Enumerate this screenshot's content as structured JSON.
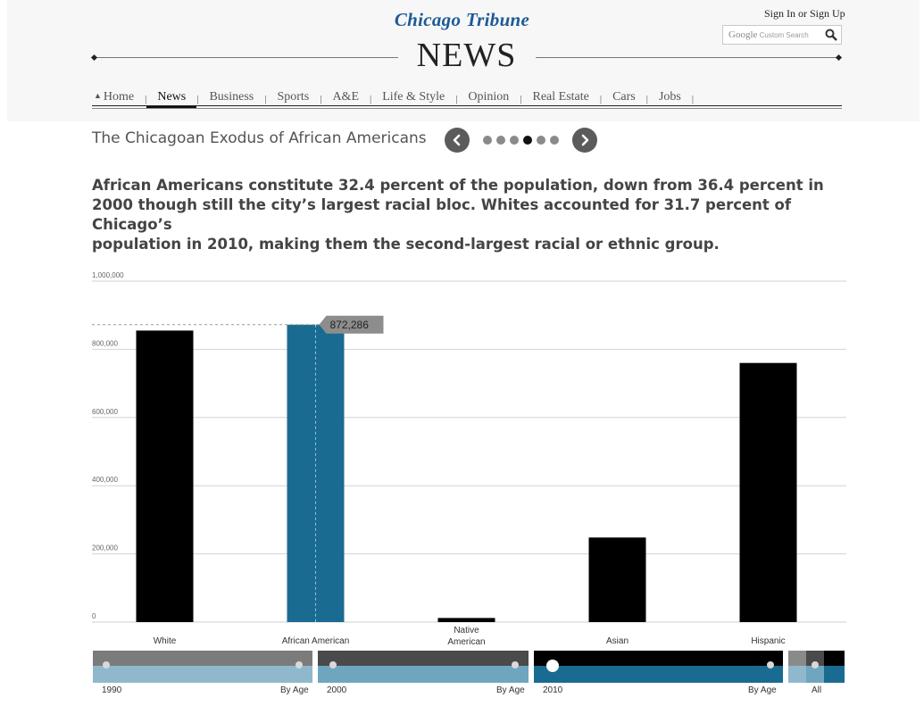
{
  "header": {
    "brand": "Chicago Tribune",
    "section": "NEWS",
    "signin": "Sign In or Sign Up",
    "search_brand": "Google",
    "search_placeholder": "Custom Search"
  },
  "nav": [
    "Home",
    "News",
    "Business",
    "Sports",
    "A&E",
    "Life & Style",
    "Opinion",
    "Real Estate",
    "Cars",
    "Jobs"
  ],
  "nav_active": "News",
  "story": {
    "title": "The Chicagoan Exodus of African Americans",
    "slide_count": 6,
    "active_slide": 4,
    "lede_lines": [
      "African Americans constitute 32.4 percent of the population, down from 36.4 percent in",
      "2000 though still the city’s largest racial bloc. Whites accounted for 31.7 percent of Chicago’s",
      "population in 2010, making them the second-largest racial or ethnic group."
    ]
  },
  "chart_data": {
    "type": "bar",
    "categories": [
      "White",
      "African American",
      "Native American",
      "Asian",
      "Hispanic"
    ],
    "values": [
      855000,
      872286,
      12000,
      248000,
      760000
    ],
    "highlight_index": 1,
    "highlight_label": "872,286",
    "ylim": [
      0,
      1000000
    ],
    "yticks": [
      0,
      200000,
      400000,
      600000,
      800000,
      1000000
    ],
    "ytick_labels": [
      "0",
      "200,000",
      "400,000",
      "600,000",
      "800,000",
      "1,000,000"
    ],
    "grid": true,
    "colors": {
      "bar": "#000000",
      "highlight": "#1a6b91",
      "callout": "#8d8d8d",
      "grid": "#d2d2d2"
    }
  },
  "timeline": {
    "segments": [
      {
        "year": "1990",
        "link": "By Age"
      },
      {
        "year": "2000",
        "link": "By Age"
      },
      {
        "year": "2010",
        "link": "By Age"
      }
    ],
    "all_label": "All",
    "active_segment": 2
  }
}
